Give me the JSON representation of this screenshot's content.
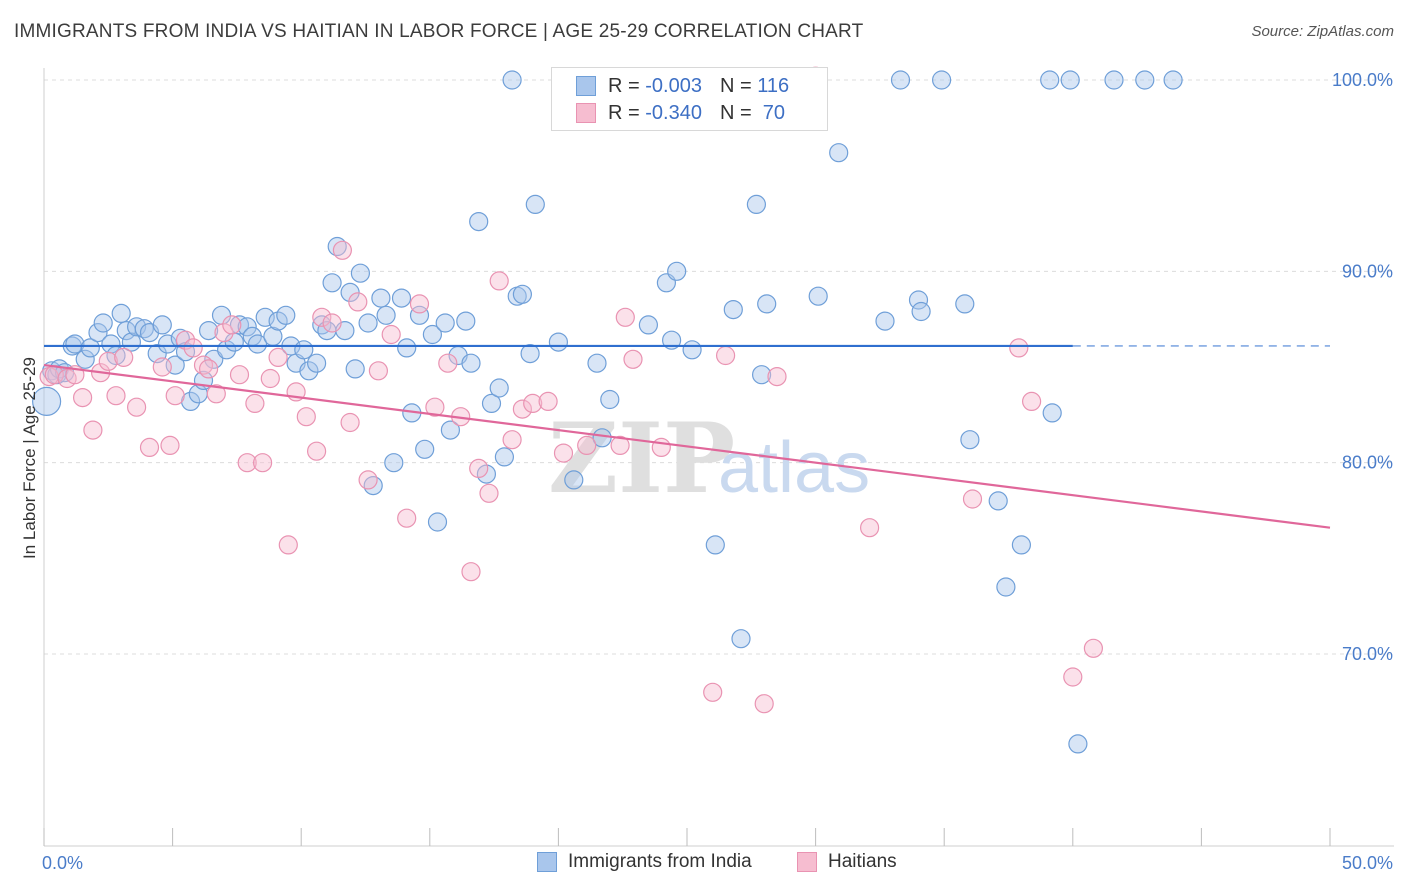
{
  "header": {
    "title": "IMMIGRANTS FROM INDIA VS HAITIAN IN LABOR FORCE | AGE 25-29 CORRELATION CHART",
    "source": "Source: ZipAtlas.com"
  },
  "watermark": {
    "zip": "ZIP",
    "atlas": "atlas"
  },
  "legend_top": [
    {
      "r_label": "R =",
      "r_value": "-0.003",
      "n_label": "N =",
      "n_value": "116"
    },
    {
      "r_label": "R =",
      "r_value": "-0.340",
      "n_label": "N =",
      "n_value": "70"
    }
  ],
  "legend_bottom": [
    "Immigrants from India",
    "Haitians"
  ],
  "colors": {
    "india_fill": "#a9c6ec",
    "india_stroke": "#6f9fd8",
    "india_line": "#2f6fcf",
    "haiti_fill": "#f6bdd0",
    "haiti_stroke": "#e993b2",
    "haiti_line": "#e0679a",
    "grid": "#dcdcdc",
    "tick_text": "#4a7cc9"
  },
  "chart_data": {
    "type": "scatter",
    "title": "IMMIGRANTS FROM INDIA VS HAITIAN IN LABOR FORCE | AGE 25-29 CORRELATION CHART",
    "xlabel": "",
    "ylabel": "In Labor Force | Age 25-29",
    "xlim": [
      0,
      50
    ],
    "ylim": [
      60,
      101.5
    ],
    "x_tick_labels": [
      "0.0%",
      "50.0%"
    ],
    "y_ticks": [
      70,
      80,
      90,
      100
    ],
    "y_tick_labels": [
      "70.0%",
      "80.0%",
      "90.0%",
      "100.0%"
    ],
    "grid": true,
    "legend": "top-center",
    "series": [
      {
        "name": "Immigrants from India",
        "r": -0.003,
        "n": 116,
        "trend": {
          "x": [
            0,
            40
          ],
          "y": [
            86.1,
            86.1
          ],
          "dashed_to": 50
        },
        "points": [
          [
            0.1,
            83.2
          ],
          [
            0.3,
            84.8
          ],
          [
            0.5,
            84.6
          ],
          [
            0.6,
            84.9
          ],
          [
            0.8,
            84.7
          ],
          [
            1.1,
            86.1
          ],
          [
            1.2,
            86.2
          ],
          [
            1.6,
            85.4
          ],
          [
            1.8,
            86.0
          ],
          [
            2.1,
            86.8
          ],
          [
            2.3,
            87.3
          ],
          [
            2.6,
            86.2
          ],
          [
            2.8,
            85.6
          ],
          [
            3.0,
            87.8
          ],
          [
            3.2,
            86.9
          ],
          [
            3.4,
            86.3
          ],
          [
            3.6,
            87.1
          ],
          [
            3.9,
            87.0
          ],
          [
            4.1,
            86.8
          ],
          [
            4.4,
            85.7
          ],
          [
            4.6,
            87.2
          ],
          [
            4.8,
            86.2
          ],
          [
            5.1,
            85.1
          ],
          [
            5.3,
            86.5
          ],
          [
            5.5,
            85.8
          ],
          [
            5.7,
            83.2
          ],
          [
            6.0,
            83.6
          ],
          [
            6.2,
            84.3
          ],
          [
            6.4,
            86.9
          ],
          [
            6.6,
            85.4
          ],
          [
            6.9,
            87.7
          ],
          [
            7.1,
            85.9
          ],
          [
            7.4,
            86.3
          ],
          [
            7.6,
            87.2
          ],
          [
            7.9,
            87.1
          ],
          [
            8.1,
            86.6
          ],
          [
            8.3,
            86.2
          ],
          [
            8.6,
            87.6
          ],
          [
            8.9,
            86.6
          ],
          [
            9.1,
            87.4
          ],
          [
            9.4,
            87.7
          ],
          [
            9.6,
            86.1
          ],
          [
            9.8,
            85.2
          ],
          [
            10.1,
            85.9
          ],
          [
            10.3,
            84.8
          ],
          [
            10.6,
            85.2
          ],
          [
            10.8,
            87.2
          ],
          [
            11.0,
            86.9
          ],
          [
            11.2,
            89.4
          ],
          [
            11.4,
            91.3
          ],
          [
            11.7,
            86.9
          ],
          [
            11.9,
            88.9
          ],
          [
            12.1,
            84.9
          ],
          [
            12.3,
            89.9
          ],
          [
            12.6,
            87.3
          ],
          [
            12.8,
            78.8
          ],
          [
            13.1,
            88.6
          ],
          [
            13.3,
            87.7
          ],
          [
            13.6,
            80.0
          ],
          [
            13.9,
            88.6
          ],
          [
            14.1,
            86.0
          ],
          [
            14.3,
            82.6
          ],
          [
            14.6,
            87.7
          ],
          [
            14.8,
            80.7
          ],
          [
            15.1,
            86.7
          ],
          [
            15.3,
            76.9
          ],
          [
            15.6,
            87.3
          ],
          [
            15.8,
            81.7
          ],
          [
            16.1,
            85.6
          ],
          [
            16.4,
            87.4
          ],
          [
            16.6,
            85.2
          ],
          [
            16.9,
            92.6
          ],
          [
            17.2,
            79.4
          ],
          [
            17.4,
            83.1
          ],
          [
            17.7,
            83.9
          ],
          [
            17.9,
            80.3
          ],
          [
            18.2,
            100.0
          ],
          [
            18.4,
            88.7
          ],
          [
            18.6,
            88.8
          ],
          [
            18.9,
            85.7
          ],
          [
            19.1,
            93.5
          ],
          [
            20.0,
            86.3
          ],
          [
            20.6,
            79.1
          ],
          [
            21.5,
            85.2
          ],
          [
            21.7,
            81.3
          ],
          [
            22.0,
            83.3
          ],
          [
            23.5,
            87.2
          ],
          [
            24.2,
            89.4
          ],
          [
            24.4,
            86.4
          ],
          [
            24.6,
            90.0
          ],
          [
            25.2,
            85.9
          ],
          [
            26.1,
            75.7
          ],
          [
            26.8,
            88.0
          ],
          [
            27.1,
            70.8
          ],
          [
            27.7,
            93.5
          ],
          [
            27.9,
            84.6
          ],
          [
            28.1,
            88.3
          ],
          [
            30.1,
            88.7
          ],
          [
            30.9,
            96.2
          ],
          [
            32.7,
            87.4
          ],
          [
            33.3,
            100.0
          ],
          [
            34.0,
            88.5
          ],
          [
            34.1,
            87.9
          ],
          [
            34.9,
            100.0
          ],
          [
            35.8,
            88.3
          ],
          [
            36.0,
            81.2
          ],
          [
            37.1,
            78.0
          ],
          [
            37.4,
            73.5
          ],
          [
            38.0,
            75.7
          ],
          [
            39.2,
            82.6
          ],
          [
            39.1,
            100.0
          ],
          [
            39.9,
            100.0
          ],
          [
            40.2,
            65.3
          ],
          [
            41.6,
            100.0
          ],
          [
            42.8,
            100.0
          ],
          [
            43.9,
            100.0
          ]
        ],
        "radius_large_first": true
      },
      {
        "name": "Haitians",
        "r": -0.34,
        "n": 70,
        "trend": {
          "x": [
            0,
            50
          ],
          "y": [
            85.1,
            76.6
          ]
        },
        "points": [
          [
            0.2,
            84.5
          ],
          [
            0.4,
            84.6
          ],
          [
            0.9,
            84.4
          ],
          [
            1.2,
            84.6
          ],
          [
            1.5,
            83.4
          ],
          [
            1.9,
            81.7
          ],
          [
            2.2,
            84.7
          ],
          [
            2.5,
            85.3
          ],
          [
            2.8,
            83.5
          ],
          [
            3.1,
            85.5
          ],
          [
            3.6,
            82.9
          ],
          [
            4.1,
            80.8
          ],
          [
            4.6,
            85.0
          ],
          [
            4.9,
            80.9
          ],
          [
            5.1,
            83.5
          ],
          [
            5.5,
            86.4
          ],
          [
            5.8,
            86.0
          ],
          [
            6.2,
            85.1
          ],
          [
            6.4,
            84.9
          ],
          [
            6.7,
            83.6
          ],
          [
            7.0,
            86.8
          ],
          [
            7.3,
            87.2
          ],
          [
            7.6,
            84.6
          ],
          [
            7.9,
            80.0
          ],
          [
            8.2,
            83.1
          ],
          [
            8.5,
            80.0
          ],
          [
            8.8,
            84.4
          ],
          [
            9.1,
            85.5
          ],
          [
            9.5,
            75.7
          ],
          [
            9.8,
            83.7
          ],
          [
            10.2,
            82.4
          ],
          [
            10.6,
            80.6
          ],
          [
            10.8,
            87.6
          ],
          [
            11.2,
            87.3
          ],
          [
            11.6,
            91.1
          ],
          [
            11.9,
            82.1
          ],
          [
            12.2,
            88.4
          ],
          [
            12.6,
            79.1
          ],
          [
            13.0,
            84.8
          ],
          [
            13.5,
            86.7
          ],
          [
            14.1,
            77.1
          ],
          [
            14.6,
            88.3
          ],
          [
            15.2,
            82.9
          ],
          [
            15.7,
            85.2
          ],
          [
            16.2,
            82.4
          ],
          [
            16.6,
            74.3
          ],
          [
            16.9,
            79.7
          ],
          [
            17.3,
            78.4
          ],
          [
            17.7,
            89.5
          ],
          [
            18.2,
            81.2
          ],
          [
            18.6,
            82.8
          ],
          [
            19.0,
            83.1
          ],
          [
            19.6,
            83.2
          ],
          [
            20.2,
            80.5
          ],
          [
            21.1,
            80.9
          ],
          [
            22.4,
            80.9
          ],
          [
            22.6,
            87.6
          ],
          [
            22.9,
            85.4
          ],
          [
            24.0,
            80.8
          ],
          [
            26.0,
            68.0
          ],
          [
            26.5,
            85.6
          ],
          [
            28.0,
            67.4
          ],
          [
            28.5,
            84.5
          ],
          [
            30.0,
            100.2
          ],
          [
            32.1,
            76.6
          ],
          [
            36.1,
            78.1
          ],
          [
            37.9,
            86.0
          ],
          [
            38.4,
            83.2
          ],
          [
            40.0,
            68.8
          ],
          [
            40.8,
            70.3
          ]
        ]
      }
    ]
  }
}
